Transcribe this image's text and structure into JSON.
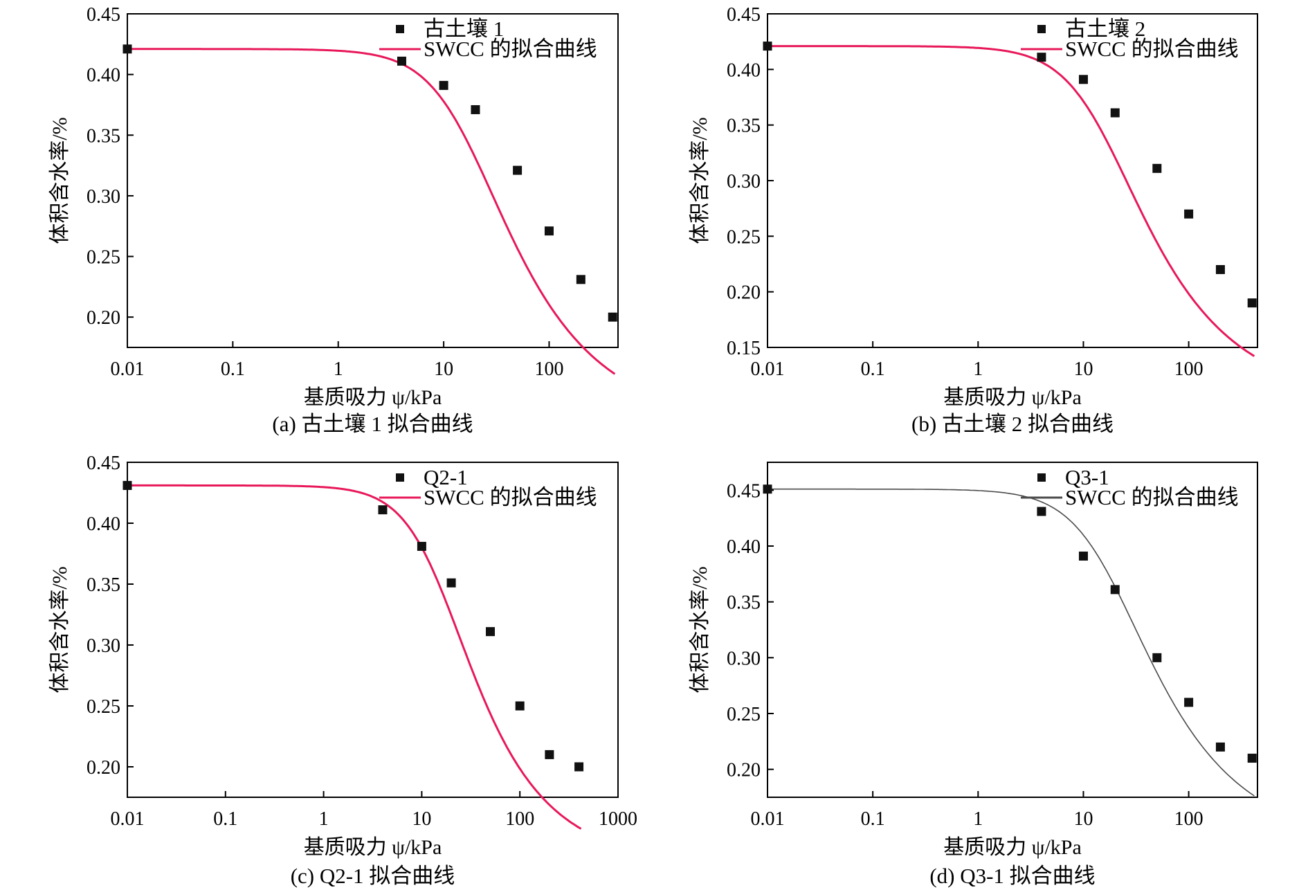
{
  "chart_data": [
    {
      "type": "scatter",
      "panel": "a",
      "caption": "(a) 古土壤 1 拟合曲线",
      "xlabel": "基质吸力 ψ/kPa",
      "ylabel": "体积含水率/%",
      "xscale": "log",
      "xlim": [
        0.01,
        450
      ],
      "ylim": [
        0.175,
        0.45
      ],
      "xticks": [
        "0.01",
        "0.1",
        "1",
        "10",
        "100"
      ],
      "yticks": [
        "0.20",
        "0.25",
        "0.30",
        "0.35",
        "0.40",
        "0.45"
      ],
      "legend_position": "top-right",
      "series": [
        {
          "name": "古土壤 1",
          "kind": "points",
          "x": [
            0.01,
            4,
            10,
            20,
            50,
            100,
            200,
            400
          ],
          "y": [
            0.421,
            0.411,
            0.391,
            0.371,
            0.321,
            0.271,
            0.231,
            0.2
          ]
        },
        {
          "name": "SWCC 的拟合曲线",
          "kind": "curve",
          "color": "#e8185a",
          "params": {
            "theta_s": 0.421,
            "theta_r": 0.11,
            "alpha": 0.064,
            "n": 1.6
          }
        }
      ]
    },
    {
      "type": "scatter",
      "panel": "b",
      "caption": "(b) 古土壤 2 拟合曲线",
      "xlabel": "基质吸力 ψ/kPa",
      "ylabel": "体积含水率/%",
      "xscale": "log",
      "xlim": [
        0.01,
        450
      ],
      "ylim": [
        0.15,
        0.45
      ],
      "xticks": [
        "0.01",
        "0.1",
        "1",
        "10",
        "100"
      ],
      "yticks": [
        "0.15",
        "0.20",
        "0.25",
        "0.30",
        "0.35",
        "0.40",
        "0.45"
      ],
      "legend_position": "top-right",
      "series": [
        {
          "name": "古土壤 2",
          "kind": "points",
          "x": [
            0.01,
            4,
            10,
            20,
            50,
            100,
            200,
            400
          ],
          "y": [
            0.421,
            0.411,
            0.391,
            0.361,
            0.311,
            0.27,
            0.22,
            0.19
          ]
        },
        {
          "name": "SWCC 的拟合曲线",
          "kind": "curve",
          "color": "#e8185a",
          "params": {
            "theta_s": 0.421,
            "theta_r": 0.1,
            "alpha": 0.07,
            "n": 1.6
          }
        }
      ]
    },
    {
      "type": "scatter",
      "panel": "c",
      "caption": "(c) Q2-1 拟合曲线",
      "xlabel": "基质吸力 ψ/kPa",
      "ylabel": "体积含水率/%",
      "xscale": "log",
      "xlim": [
        0.01,
        1000
      ],
      "ylim": [
        0.175,
        0.45
      ],
      "xticks": [
        "0.01",
        "0.1",
        "1",
        "10",
        "100",
        "1000"
      ],
      "yticks": [
        "0.20",
        "0.25",
        "0.30",
        "0.35",
        "0.40",
        "0.45"
      ],
      "legend_position": "top-right",
      "series": [
        {
          "name": "Q2-1",
          "kind": "points",
          "x": [
            0.01,
            4,
            10,
            20,
            50,
            100,
            200,
            400
          ],
          "y": [
            0.431,
            0.411,
            0.381,
            0.351,
            0.311,
            0.25,
            0.21,
            0.2
          ]
        },
        {
          "name": "SWCC 的拟合曲线",
          "kind": "curve",
          "color": "#e8185a",
          "params": {
            "theta_s": 0.431,
            "theta_r": 0.12,
            "alpha": 0.07,
            "n": 1.7
          }
        }
      ]
    },
    {
      "type": "scatter",
      "panel": "d",
      "caption": "(d) Q3-1 拟合曲线",
      "xlabel": "基质吸力 ψ/kPa",
      "ylabel": "体积含水率/%",
      "xscale": "log",
      "xlim": [
        0.01,
        450
      ],
      "ylim": [
        0.175,
        0.475
      ],
      "xticks": [
        "0.01",
        "0.1",
        "1",
        "10",
        "100"
      ],
      "yticks": [
        "0.20",
        "0.25",
        "0.30",
        "0.35",
        "0.40",
        "0.45"
      ],
      "legend_position": "top-right",
      "series": [
        {
          "name": "Q3-1",
          "kind": "points",
          "x": [
            0.01,
            4,
            10,
            20,
            50,
            100,
            200,
            400
          ],
          "y": [
            0.451,
            0.431,
            0.391,
            0.361,
            0.3,
            0.26,
            0.22,
            0.21
          ]
        },
        {
          "name": "SWCC 的拟合曲线",
          "kind": "curve",
          "color": "#4a4a4a",
          "params": {
            "theta_s": 0.451,
            "theta_r": 0.13,
            "alpha": 0.06,
            "n": 1.6
          }
        }
      ]
    }
  ]
}
